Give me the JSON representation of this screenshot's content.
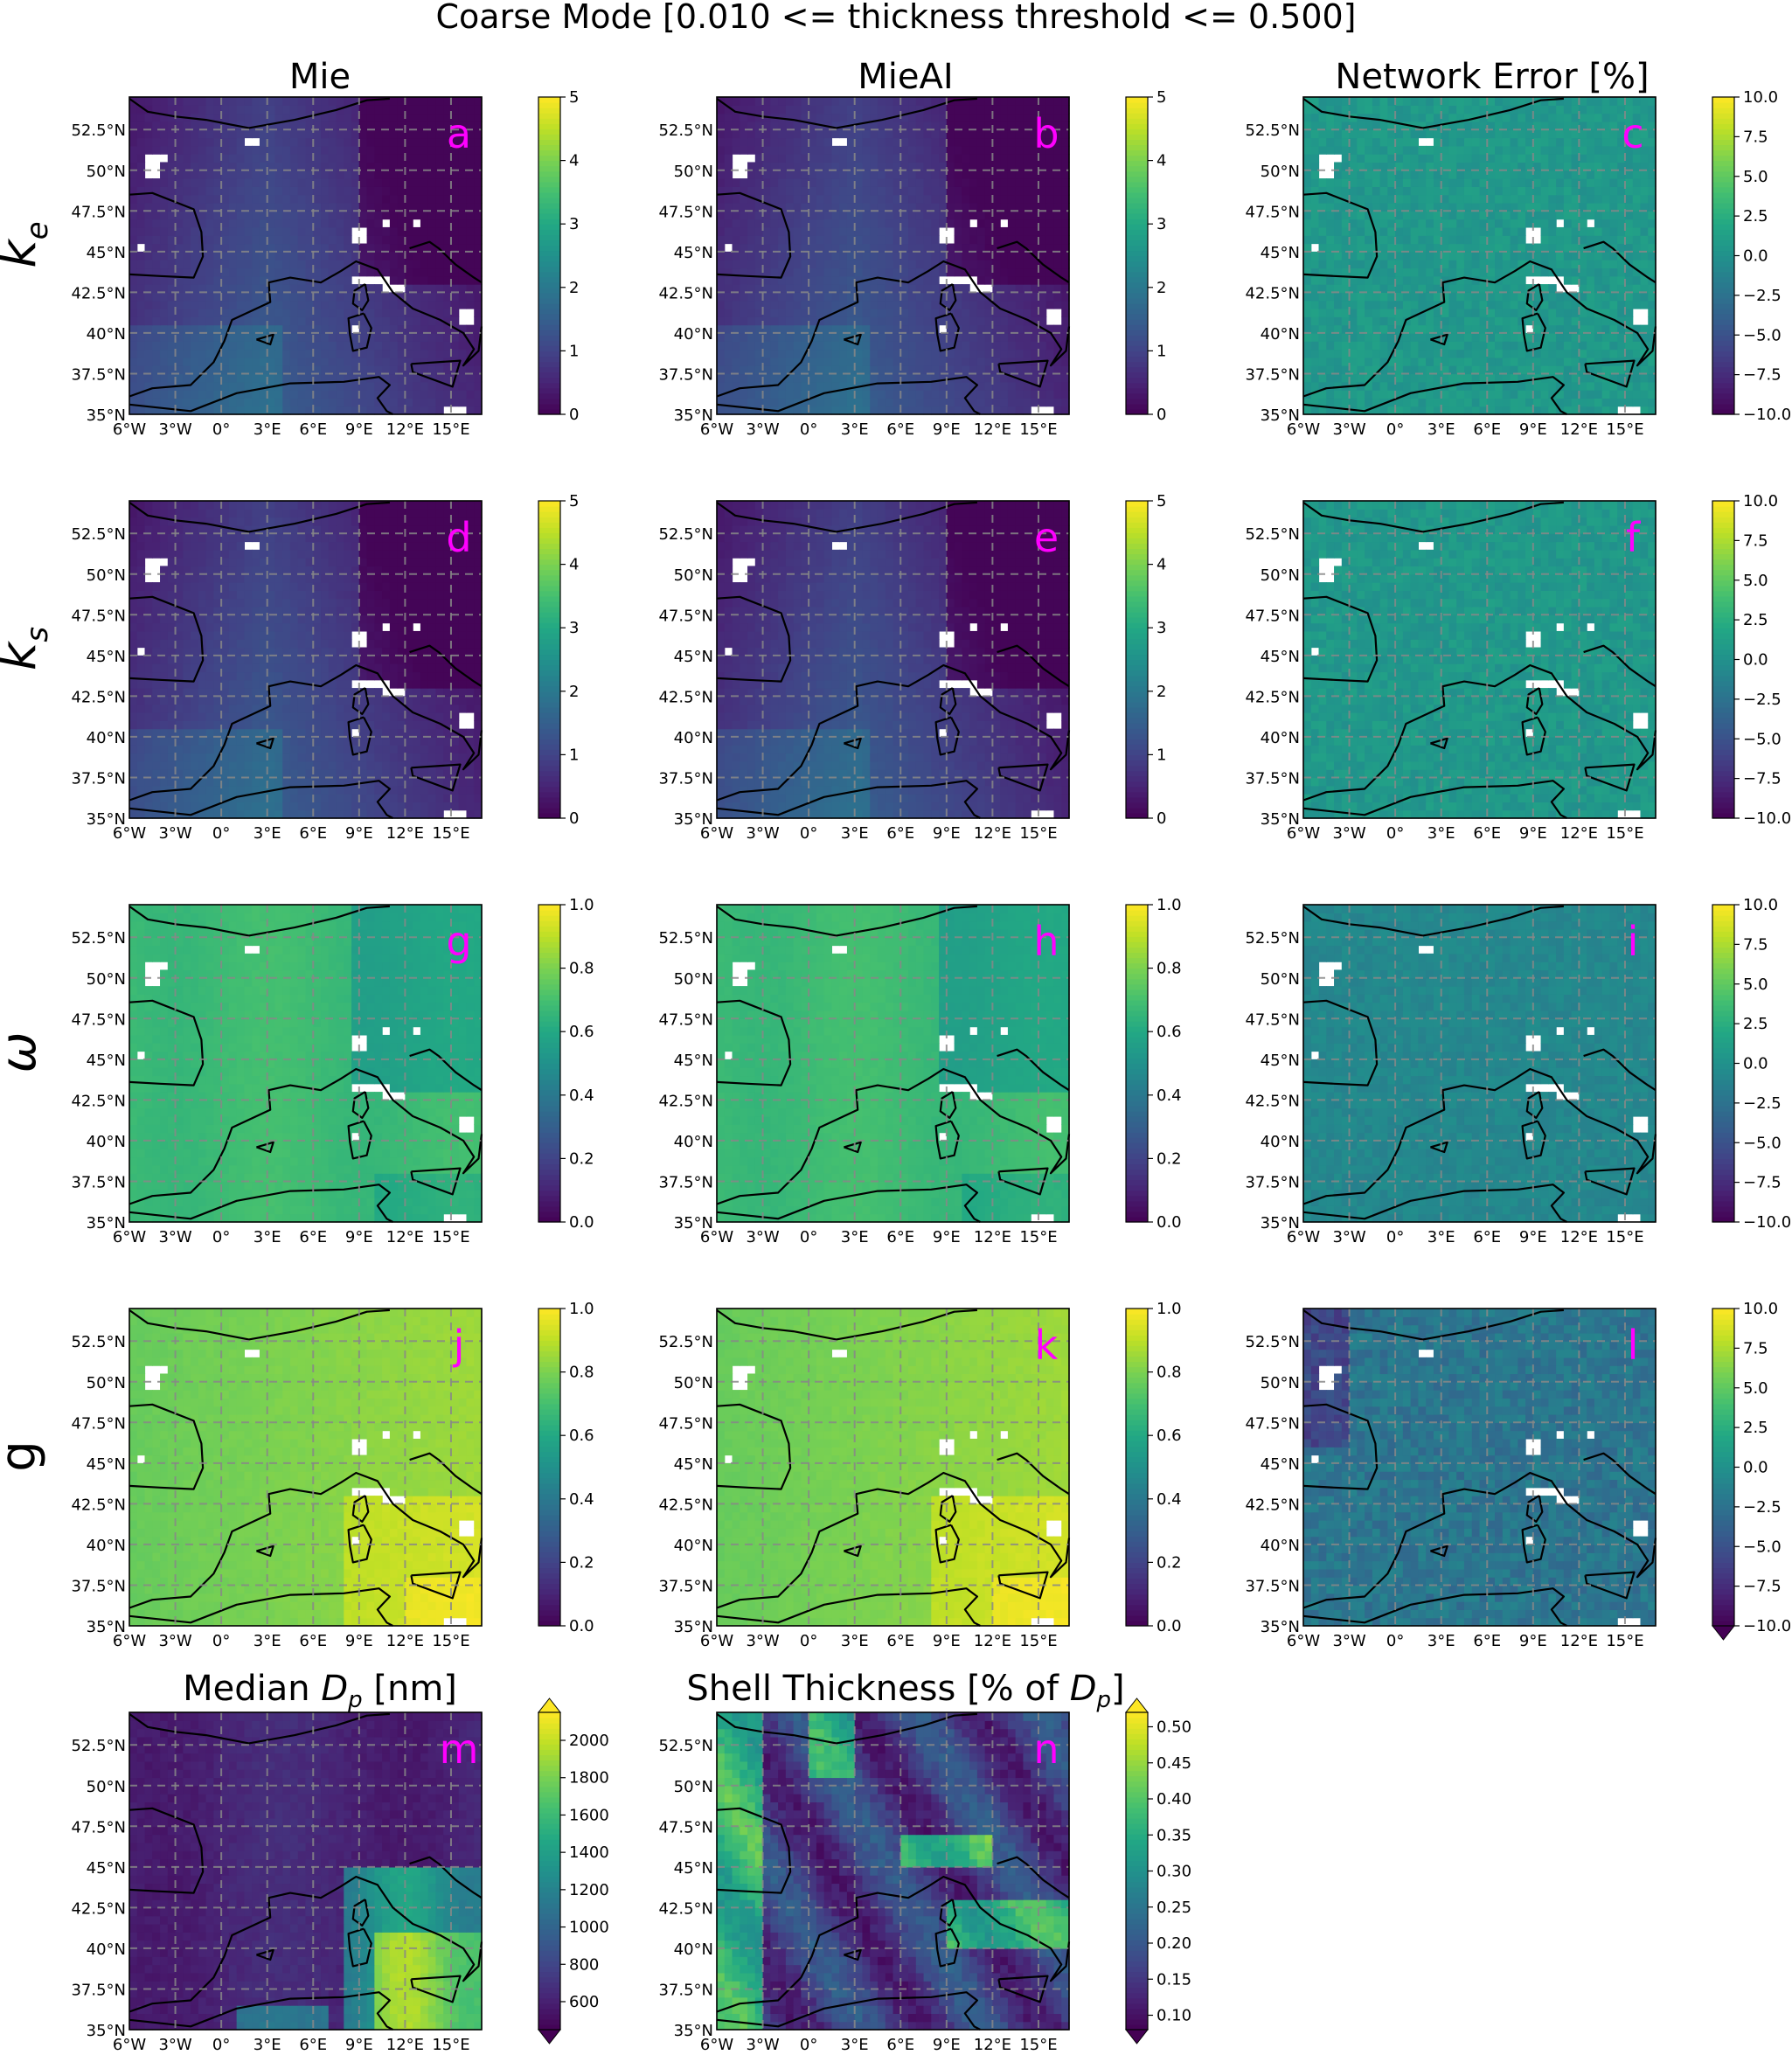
{
  "figure": {
    "title": "Coarse Mode [0.010 <= thickness threshold <= 0.500]",
    "column_titles": [
      "Mie",
      "MieAI",
      "Network Error [%]"
    ],
    "row_labels": [
      "k_e",
      "k_s",
      "ω",
      "g"
    ],
    "map": {
      "lon_range": [
        -6,
        17
      ],
      "lat_range": [
        35,
        54.5
      ],
      "x_ticks": [
        "6°W",
        "3°W",
        "0°",
        "3°E",
        "6°E",
        "9°E",
        "12°E",
        "15°E"
      ],
      "y_ticks": [
        "35°N",
        "37.5°N",
        "40°N",
        "42.5°N",
        "45°N",
        "47.5°N",
        "50°N",
        "52.5°N"
      ],
      "gridlines": true,
      "colormap": "viridis"
    },
    "panel_label_color": "#ff00ff"
  },
  "chart_data": [
    {
      "type": "heatmap",
      "panel": "a",
      "row": "k_e",
      "column": "Mie",
      "clim": [
        0,
        5
      ],
      "colorbar_ticks": [
        "0",
        "1",
        "2",
        "3",
        "4",
        "5"
      ],
      "pattern": "k"
    },
    {
      "type": "heatmap",
      "panel": "b",
      "row": "k_e",
      "column": "MieAI",
      "clim": [
        0,
        5
      ],
      "colorbar_ticks": [
        "0",
        "1",
        "2",
        "3",
        "4",
        "5"
      ],
      "pattern": "k"
    },
    {
      "type": "heatmap",
      "panel": "c",
      "row": "k_e",
      "column": "Network Error [%]",
      "clim": [
        -10,
        10
      ],
      "colorbar_ticks": [
        "−10.0",
        "−7.5",
        "−5.0",
        "−2.5",
        "0.0",
        "2.5",
        "5.0",
        "7.5",
        "10.0"
      ],
      "pattern": "err"
    },
    {
      "type": "heatmap",
      "panel": "d",
      "row": "k_s",
      "column": "Mie",
      "clim": [
        0,
        5
      ],
      "colorbar_ticks": [
        "0",
        "1",
        "2",
        "3",
        "4",
        "5"
      ],
      "pattern": "k"
    },
    {
      "type": "heatmap",
      "panel": "e",
      "row": "k_s",
      "column": "MieAI",
      "clim": [
        0,
        5
      ],
      "colorbar_ticks": [
        "0",
        "1",
        "2",
        "3",
        "4",
        "5"
      ],
      "pattern": "k"
    },
    {
      "type": "heatmap",
      "panel": "f",
      "row": "k_s",
      "column": "Network Error [%]",
      "clim": [
        -10,
        10
      ],
      "colorbar_ticks": [
        "−10.0",
        "−7.5",
        "−5.0",
        "−2.5",
        "0.0",
        "2.5",
        "5.0",
        "7.5",
        "10.0"
      ],
      "pattern": "err"
    },
    {
      "type": "heatmap",
      "panel": "g",
      "row": "ω",
      "column": "Mie",
      "clim": [
        0,
        1
      ],
      "colorbar_ticks": [
        "0.0",
        "0.2",
        "0.4",
        "0.6",
        "0.8",
        "1.0"
      ],
      "pattern": "omega"
    },
    {
      "type": "heatmap",
      "panel": "h",
      "row": "ω",
      "column": "MieAI",
      "clim": [
        0,
        1
      ],
      "colorbar_ticks": [
        "0.0",
        "0.2",
        "0.4",
        "0.6",
        "0.8",
        "1.0"
      ],
      "pattern": "omega"
    },
    {
      "type": "heatmap",
      "panel": "i",
      "row": "ω",
      "column": "Network Error [%]",
      "clim": [
        -10,
        10
      ],
      "colorbar_ticks": [
        "−10.0",
        "−7.5",
        "−5.0",
        "−2.5",
        "0.0",
        "2.5",
        "5.0",
        "7.5",
        "10.0"
      ],
      "pattern": "err_low"
    },
    {
      "type": "heatmap",
      "panel": "j",
      "row": "g",
      "column": "Mie",
      "clim": [
        0,
        1
      ],
      "colorbar_ticks": [
        "0.0",
        "0.2",
        "0.4",
        "0.6",
        "0.8",
        "1.0"
      ],
      "pattern": "g"
    },
    {
      "type": "heatmap",
      "panel": "k",
      "row": "g",
      "column": "MieAI",
      "clim": [
        0,
        1
      ],
      "colorbar_ticks": [
        "0.0",
        "0.2",
        "0.4",
        "0.6",
        "0.8",
        "1.0"
      ],
      "pattern": "g"
    },
    {
      "type": "heatmap",
      "panel": "l",
      "row": "g",
      "column": "Network Error [%]",
      "clim": [
        -10,
        10
      ],
      "colorbar_ticks": [
        "−10.0",
        "−7.5",
        "−5.0",
        "−2.5",
        "0.0",
        "2.5",
        "5.0",
        "7.5",
        "10.0"
      ],
      "colorbar_extend": "min",
      "pattern": "err_neg"
    },
    {
      "type": "heatmap",
      "panel": "m",
      "title": "Median D_p [nm]",
      "clim": [
        450,
        2150
      ],
      "colorbar_ticks": [
        "600",
        "800",
        "1000",
        "1200",
        "1400",
        "1600",
        "1800",
        "2000"
      ],
      "colorbar_extend": "both",
      "pattern": "dp"
    },
    {
      "type": "heatmap",
      "panel": "n",
      "title": "Shell Thickness [% of D_p]",
      "clim": [
        0.08,
        0.52
      ],
      "colorbar_ticks": [
        "0.10",
        "0.15",
        "0.20",
        "0.25",
        "0.30",
        "0.35",
        "0.40",
        "0.45",
        "0.50"
      ],
      "colorbar_extend": "both",
      "pattern": "shell"
    }
  ]
}
